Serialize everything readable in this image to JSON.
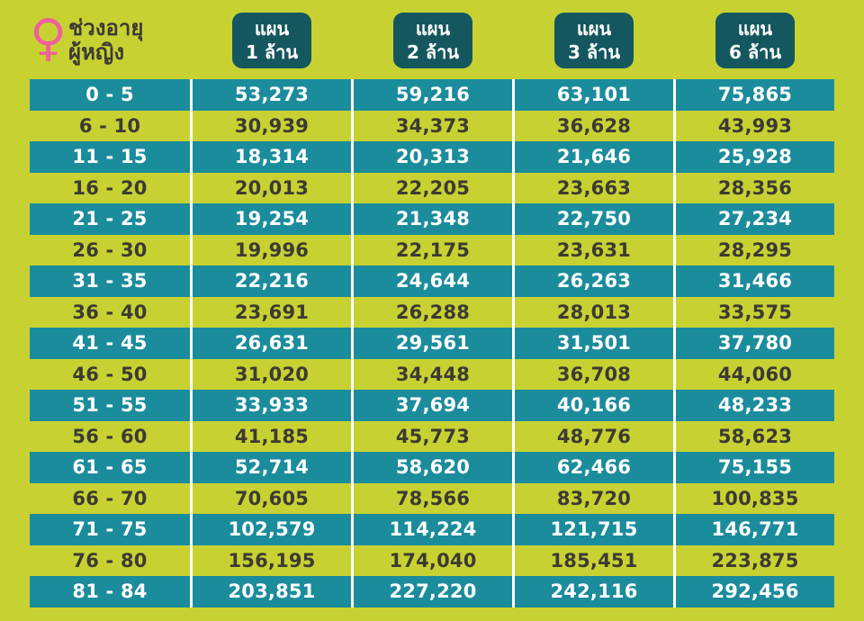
{
  "header": {
    "icon": "female-icon",
    "icon_glyph": "♀",
    "title_line1": "ช่วงอายุ",
    "title_line2": "ผู้หญิง"
  },
  "plans": [
    {
      "line1": "แผน",
      "line2": "1 ล้าน"
    },
    {
      "line1": "แผน",
      "line2": "2 ล้าน"
    },
    {
      "line1": "แผน",
      "line2": "3 ล้าน"
    },
    {
      "line1": "แผน",
      "line2": "6 ล้าน"
    }
  ],
  "colors": {
    "background_lime": "#c7d232",
    "row_teal": "#1b8c9c",
    "badge_dark_teal": "#15575f",
    "female_icon_pink": "#f0609b",
    "dark_text": "#3d3a33",
    "divider_white": "#ffffff"
  },
  "chart_data": {
    "type": "table",
    "title": "ช่วงอายุ ผู้หญิง",
    "columns": [
      "ช่วงอายุ ผู้หญิง",
      "แผน 1 ล้าน",
      "แผน 2 ล้าน",
      "แผน 3 ล้าน",
      "แผน 6 ล้าน"
    ],
    "rows": [
      [
        "0 - 5",
        "53,273",
        "59,216",
        "63,101",
        "75,865"
      ],
      [
        "6 - 10",
        "30,939",
        "34,373",
        "36,628",
        "43,993"
      ],
      [
        "11 - 15",
        "18,314",
        "20,313",
        "21,646",
        "25,928"
      ],
      [
        "16 - 20",
        "20,013",
        "22,205",
        "23,663",
        "28,356"
      ],
      [
        "21 - 25",
        "19,254",
        "21,348",
        "22,750",
        "27,234"
      ],
      [
        "26 - 30",
        "19,996",
        "22,175",
        "23,631",
        "28,295"
      ],
      [
        "31 - 35",
        "22,216",
        "24,644",
        "26,263",
        "31,466"
      ],
      [
        "36 - 40",
        "23,691",
        "26,288",
        "28,013",
        "33,575"
      ],
      [
        "41 - 45",
        "26,631",
        "29,561",
        "31,501",
        "37,780"
      ],
      [
        "46 - 50",
        "31,020",
        "34,448",
        "36,708",
        "44,060"
      ],
      [
        "51 - 55",
        "33,933",
        "37,694",
        "40,166",
        "48,233"
      ],
      [
        "56 - 60",
        "41,185",
        "45,773",
        "48,776",
        "58,623"
      ],
      [
        "61 - 65",
        "52,714",
        "58,620",
        "62,466",
        "75,155"
      ],
      [
        "66 - 70",
        "70,605",
        "78,566",
        "83,720",
        "100,835"
      ],
      [
        "71 - 75",
        "102,579",
        "114,224",
        "121,715",
        "146,771"
      ],
      [
        "76 - 80",
        "156,195",
        "174,040",
        "185,451",
        "223,875"
      ],
      [
        "81 - 84",
        "203,851",
        "227,220",
        "242,116",
        "292,456"
      ]
    ],
    "row_striping": "odd rows teal (#1b8c9c) starting with first row, even rows lime background",
    "legend_position": "none",
    "grid": "white vertical column dividers only"
  }
}
